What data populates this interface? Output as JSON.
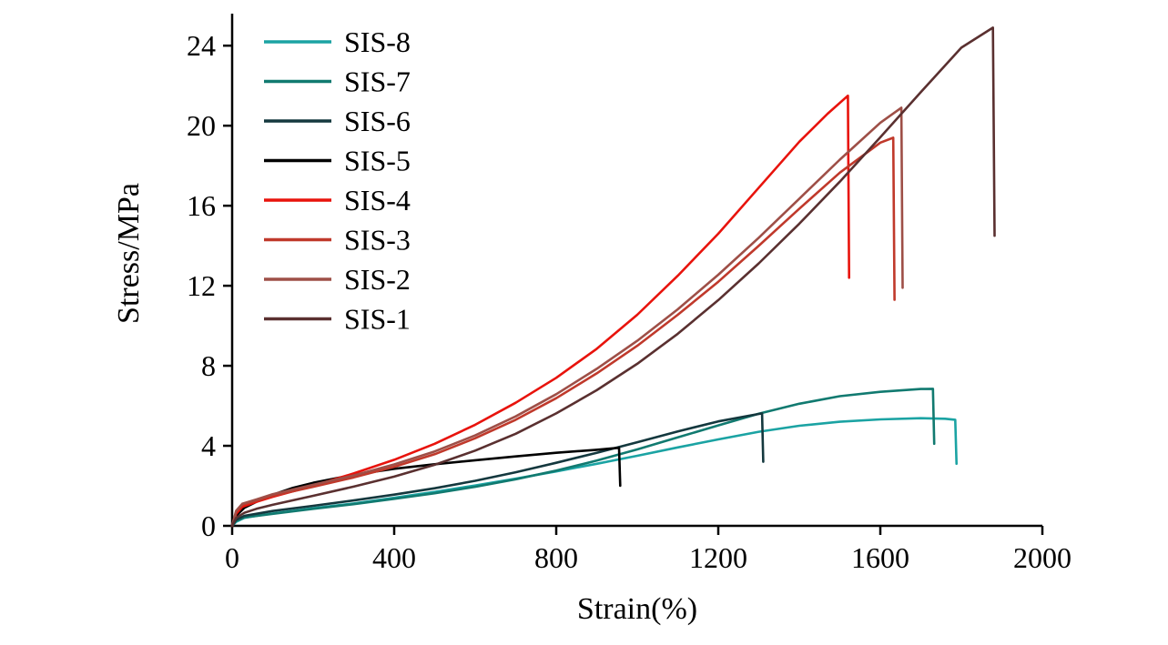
{
  "figure": {
    "background": "#ffffff",
    "axis_color": "#000000"
  },
  "chart_data": {
    "type": "line",
    "title": "",
    "xlabel": "Strain(%)",
    "ylabel": "Stress/MPa",
    "xlim": [
      0,
      2000
    ],
    "ylim": [
      0,
      25.6
    ],
    "x_ticks": [
      0,
      400,
      800,
      1200,
      1600,
      2000
    ],
    "y_ticks": [
      0,
      4,
      8,
      12,
      16,
      20,
      24
    ],
    "grid": false,
    "legend_position": "top-left",
    "series": [
      {
        "name": "SIS-8",
        "color": "#1ba3a3",
        "points": [
          [
            0,
            0
          ],
          [
            10,
            0.2
          ],
          [
            30,
            0.4
          ],
          [
            60,
            0.5
          ],
          [
            100,
            0.62
          ],
          [
            200,
            0.88
          ],
          [
            300,
            1.12
          ],
          [
            400,
            1.4
          ],
          [
            500,
            1.7
          ],
          [
            600,
            2.02
          ],
          [
            700,
            2.36
          ],
          [
            800,
            2.72
          ],
          [
            900,
            3.1
          ],
          [
            1000,
            3.5
          ],
          [
            1100,
            3.92
          ],
          [
            1200,
            4.32
          ],
          [
            1300,
            4.7
          ],
          [
            1400,
            5.0
          ],
          [
            1500,
            5.2
          ],
          [
            1600,
            5.32
          ],
          [
            1700,
            5.38
          ],
          [
            1760,
            5.35
          ],
          [
            1785,
            5.3
          ],
          [
            1788,
            3.1
          ]
        ]
      },
      {
        "name": "SIS-7",
        "color": "#117a70",
        "points": [
          [
            0,
            0
          ],
          [
            10,
            0.25
          ],
          [
            30,
            0.42
          ],
          [
            100,
            0.6
          ],
          [
            200,
            0.85
          ],
          [
            300,
            1.08
          ],
          [
            400,
            1.35
          ],
          [
            500,
            1.63
          ],
          [
            600,
            1.95
          ],
          [
            700,
            2.33
          ],
          [
            800,
            2.76
          ],
          [
            900,
            3.26
          ],
          [
            1000,
            3.82
          ],
          [
            1100,
            4.42
          ],
          [
            1200,
            5.02
          ],
          [
            1300,
            5.6
          ],
          [
            1400,
            6.1
          ],
          [
            1500,
            6.48
          ],
          [
            1600,
            6.7
          ],
          [
            1700,
            6.84
          ],
          [
            1730,
            6.85
          ],
          [
            1733,
            4.1
          ]
        ]
      },
      {
        "name": "SIS-6",
        "color": "#14383e",
        "points": [
          [
            0,
            0
          ],
          [
            10,
            0.3
          ],
          [
            30,
            0.5
          ],
          [
            100,
            0.74
          ],
          [
            200,
            1.0
          ],
          [
            300,
            1.27
          ],
          [
            400,
            1.56
          ],
          [
            500,
            1.88
          ],
          [
            600,
            2.25
          ],
          [
            700,
            2.68
          ],
          [
            800,
            3.15
          ],
          [
            900,
            3.65
          ],
          [
            1000,
            4.18
          ],
          [
            1100,
            4.72
          ],
          [
            1200,
            5.22
          ],
          [
            1280,
            5.52
          ],
          [
            1308,
            5.62
          ],
          [
            1311,
            3.2
          ]
        ]
      },
      {
        "name": "SIS-5",
        "color": "#000000",
        "points": [
          [
            0,
            0
          ],
          [
            10,
            0.5
          ],
          [
            30,
            0.9
          ],
          [
            60,
            1.2
          ],
          [
            100,
            1.55
          ],
          [
            150,
            1.9
          ],
          [
            200,
            2.15
          ],
          [
            300,
            2.55
          ],
          [
            400,
            2.85
          ],
          [
            500,
            3.08
          ],
          [
            600,
            3.28
          ],
          [
            700,
            3.47
          ],
          [
            800,
            3.65
          ],
          [
            900,
            3.8
          ],
          [
            955,
            3.9
          ],
          [
            958,
            2.0
          ]
        ]
      },
      {
        "name": "SIS-4",
        "color": "#e8130c",
        "points": [
          [
            0,
            0
          ],
          [
            10,
            0.6
          ],
          [
            25,
            0.95
          ],
          [
            60,
            1.2
          ],
          [
            100,
            1.45
          ],
          [
            200,
            2.0
          ],
          [
            300,
            2.62
          ],
          [
            400,
            3.3
          ],
          [
            500,
            4.1
          ],
          [
            600,
            5.05
          ],
          [
            700,
            6.15
          ],
          [
            800,
            7.4
          ],
          [
            900,
            8.85
          ],
          [
            1000,
            10.55
          ],
          [
            1100,
            12.5
          ],
          [
            1200,
            14.6
          ],
          [
            1300,
            16.9
          ],
          [
            1400,
            19.2
          ],
          [
            1470,
            20.6
          ],
          [
            1520,
            21.5
          ],
          [
            1523,
            12.4
          ]
        ]
      },
      {
        "name": "SIS-3",
        "color": "#c0392b",
        "points": [
          [
            0,
            0
          ],
          [
            10,
            0.7
          ],
          [
            25,
            1.05
          ],
          [
            60,
            1.25
          ],
          [
            100,
            1.5
          ],
          [
            200,
            1.95
          ],
          [
            300,
            2.42
          ],
          [
            400,
            2.95
          ],
          [
            500,
            3.58
          ],
          [
            600,
            4.38
          ],
          [
            700,
            5.3
          ],
          [
            800,
            6.38
          ],
          [
            900,
            7.62
          ],
          [
            1000,
            9.0
          ],
          [
            1100,
            10.55
          ],
          [
            1200,
            12.2
          ],
          [
            1300,
            14.0
          ],
          [
            1400,
            15.85
          ],
          [
            1500,
            17.65
          ],
          [
            1600,
            19.15
          ],
          [
            1632,
            19.4
          ],
          [
            1635,
            11.3
          ]
        ]
      },
      {
        "name": "SIS-2",
        "color": "#9e4f47",
        "points": [
          [
            0,
            0
          ],
          [
            10,
            0.75
          ],
          [
            25,
            1.1
          ],
          [
            60,
            1.32
          ],
          [
            100,
            1.58
          ],
          [
            200,
            2.05
          ],
          [
            300,
            2.52
          ],
          [
            400,
            3.07
          ],
          [
            500,
            3.72
          ],
          [
            600,
            4.52
          ],
          [
            700,
            5.47
          ],
          [
            800,
            6.58
          ],
          [
            900,
            7.85
          ],
          [
            1000,
            9.25
          ],
          [
            1100,
            10.82
          ],
          [
            1200,
            12.55
          ],
          [
            1300,
            14.4
          ],
          [
            1400,
            16.35
          ],
          [
            1500,
            18.3
          ],
          [
            1600,
            20.15
          ],
          [
            1652,
            20.9
          ],
          [
            1655,
            11.9
          ]
        ]
      },
      {
        "name": "SIS-1",
        "color": "#5a3030",
        "points": [
          [
            0,
            0
          ],
          [
            10,
            0.4
          ],
          [
            30,
            0.65
          ],
          [
            60,
            0.85
          ],
          [
            100,
            1.05
          ],
          [
            200,
            1.5
          ],
          [
            300,
            1.96
          ],
          [
            400,
            2.46
          ],
          [
            500,
            3.05
          ],
          [
            600,
            3.76
          ],
          [
            700,
            4.6
          ],
          [
            800,
            5.62
          ],
          [
            900,
            6.78
          ],
          [
            1000,
            8.1
          ],
          [
            1100,
            9.6
          ],
          [
            1200,
            11.28
          ],
          [
            1300,
            13.12
          ],
          [
            1400,
            15.1
          ],
          [
            1500,
            17.2
          ],
          [
            1600,
            19.42
          ],
          [
            1700,
            21.68
          ],
          [
            1800,
            23.9
          ],
          [
            1878,
            24.9
          ],
          [
            1882,
            14.5
          ]
        ]
      }
    ]
  }
}
